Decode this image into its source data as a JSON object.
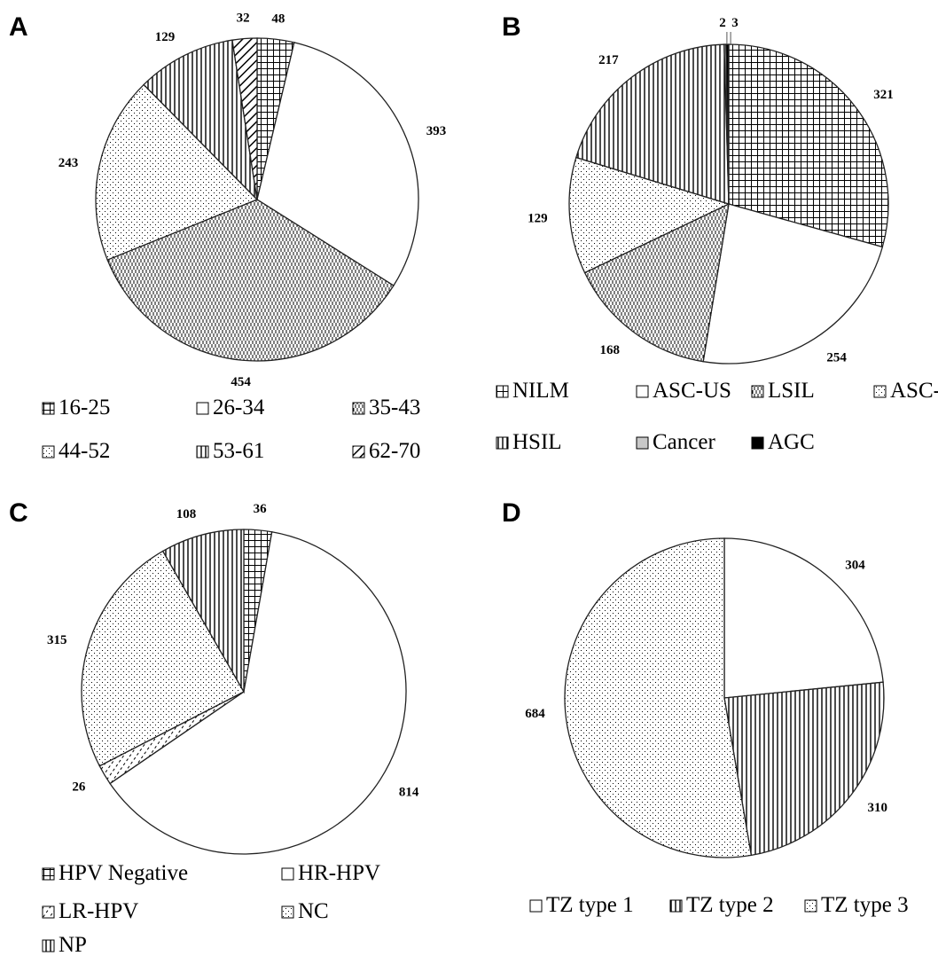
{
  "figure": {
    "panels": [
      {
        "letter": "A",
        "chart_data": {
          "type": "pie",
          "categories": [
            "16-25",
            "26-34",
            "35-43",
            "44-52",
            "53-61",
            "62-70"
          ],
          "values": [
            48,
            393,
            454,
            243,
            129,
            32
          ],
          "start": "12 o'clock",
          "direction": "clockwise",
          "legend_placement": "bottom",
          "patterns": [
            "grid",
            "white",
            "vertical-dash",
            "dots",
            "vertical-lines",
            "diagonal"
          ]
        }
      },
      {
        "letter": "B",
        "chart_data": {
          "type": "pie",
          "categories": [
            "NILM",
            "ASC-US",
            "LSIL",
            "ASC-H",
            "HSIL",
            "Cancer",
            "AGC"
          ],
          "values": [
            321,
            254,
            168,
            129,
            217,
            2,
            3
          ],
          "pie_order": [
            "NILM",
            "ASC-US",
            "LSIL",
            "ASC-H",
            "HSIL",
            "Cancer",
            "AGC"
          ],
          "start": "12 o'clock",
          "direction": "clockwise",
          "legend_placement": "bottom",
          "patterns": [
            "grid",
            "white",
            "vertical-dash",
            "dots",
            "vertical-lines",
            "gray",
            "black"
          ]
        }
      },
      {
        "letter": "C",
        "chart_data": {
          "type": "pie",
          "categories": [
            "HPV Negative",
            "HR-HPV",
            "LR-HPV",
            "NC",
            "NP"
          ],
          "values": [
            36,
            814,
            26,
            315,
            108
          ],
          "start": "12 o'clock",
          "direction": "clockwise",
          "legend_placement": "bottom",
          "patterns": [
            "grid",
            "white",
            "diag-dash",
            "dots",
            "vertical-lines"
          ]
        }
      },
      {
        "letter": "D",
        "chart_data": {
          "type": "pie",
          "categories": [
            "TZ type 1",
            "TZ type 2",
            "TZ type 3"
          ],
          "values": [
            304,
            310,
            684
          ],
          "start": "12 o'clock",
          "direction": "clockwise",
          "legend_placement": "bottom",
          "patterns": [
            "white",
            "vertical-lines",
            "dots"
          ]
        }
      }
    ]
  }
}
